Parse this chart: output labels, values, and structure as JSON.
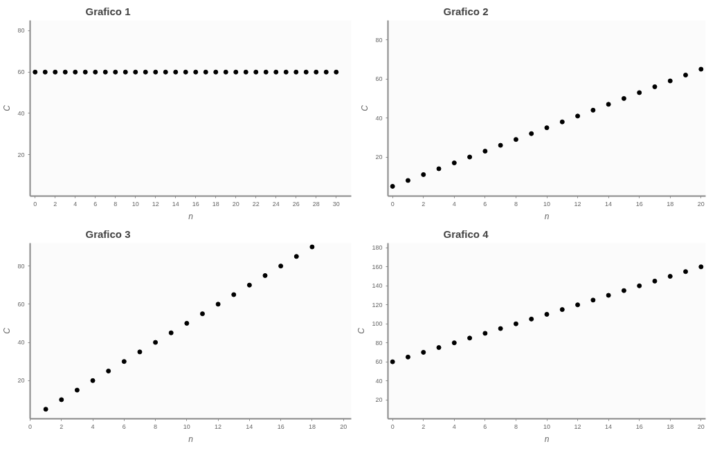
{
  "chart_data": [
    {
      "type": "scatter",
      "title": "Grafico 1",
      "xlabel": "n",
      "ylabel": "C",
      "marker": "circle",
      "grid": false,
      "xlim": [
        -0.5,
        31.5
      ],
      "ylim": [
        0,
        85
      ],
      "xticks": [
        0,
        2,
        4,
        6,
        8,
        10,
        12,
        14,
        16,
        18,
        20,
        22,
        24,
        26,
        28,
        30
      ],
      "yticks": [
        20,
        40,
        60,
        80
      ],
      "x": [
        0,
        1,
        2,
        3,
        4,
        5,
        6,
        7,
        8,
        9,
        10,
        11,
        12,
        13,
        14,
        15,
        16,
        17,
        18,
        19,
        20,
        21,
        22,
        23,
        24,
        25,
        26,
        27,
        28,
        29,
        30
      ],
      "series": [
        {
          "color": "#000000",
          "values": [
            60,
            60,
            60,
            60,
            60,
            60,
            60,
            60,
            60,
            60,
            60,
            60,
            60,
            60,
            60,
            60,
            60,
            60,
            60,
            60,
            60,
            60,
            60,
            60,
            60,
            60,
            60,
            60,
            60,
            60,
            60
          ]
        }
      ]
    },
    {
      "type": "scatter",
      "title": "Grafico 2",
      "xlabel": "n",
      "ylabel": "C",
      "marker": "circle",
      "grid": false,
      "xlim": [
        -0.3,
        20.3
      ],
      "ylim": [
        0,
        90
      ],
      "xticks": [
        0,
        2,
        4,
        6,
        8,
        10,
        12,
        14,
        16,
        18,
        20
      ],
      "yticks": [
        20,
        40,
        60,
        80
      ],
      "x": [
        0,
        1,
        2,
        3,
        4,
        5,
        6,
        7,
        8,
        9,
        10,
        11,
        12,
        13,
        14,
        15,
        16,
        17,
        18,
        19,
        20
      ],
      "series": [
        {
          "color": "#000000",
          "values": [
            5,
            8,
            11,
            14,
            17,
            20,
            23,
            26,
            29,
            32,
            35,
            38,
            41,
            44,
            47,
            50,
            53,
            56,
            59,
            62,
            65
          ]
        }
      ]
    },
    {
      "type": "scatter",
      "title": "Grafico 3",
      "xlabel": "n",
      "ylabel": "C",
      "marker": "circle",
      "grid": false,
      "xlim": [
        0,
        20.5
      ],
      "ylim": [
        0,
        92
      ],
      "xticks": [
        0,
        2,
        4,
        6,
        8,
        10,
        12,
        14,
        16,
        18,
        20
      ],
      "yticks": [
        20,
        40,
        60,
        80
      ],
      "x": [
        1,
        2,
        3,
        4,
        5,
        6,
        7,
        8,
        9,
        10,
        11,
        12,
        13,
        14,
        15,
        16,
        17,
        18
      ],
      "series": [
        {
          "color": "#000000",
          "values": [
            5,
            10,
            15,
            20,
            25,
            30,
            35,
            40,
            45,
            50,
            55,
            60,
            65,
            70,
            75,
            80,
            85,
            90
          ]
        }
      ]
    },
    {
      "type": "scatter",
      "title": "Grafico 4",
      "xlabel": "n",
      "ylabel": "C",
      "marker": "circle",
      "grid": false,
      "xlim": [
        -0.3,
        20.3
      ],
      "ylim": [
        0,
        185
      ],
      "xticks": [
        0,
        2,
        4,
        6,
        8,
        10,
        12,
        14,
        16,
        18,
        20
      ],
      "yticks": [
        20,
        40,
        60,
        80,
        100,
        120,
        140,
        160,
        180
      ],
      "x": [
        0,
        1,
        2,
        3,
        4,
        5,
        6,
        7,
        8,
        9,
        10,
        11,
        12,
        13,
        14,
        15,
        16,
        17,
        18,
        19,
        20
      ],
      "series": [
        {
          "color": "#000000",
          "values": [
            60,
            65,
            70,
            75,
            80,
            85,
            90,
            95,
            100,
            105,
            110,
            115,
            120,
            125,
            130,
            135,
            140,
            145,
            150,
            155,
            160
          ]
        }
      ]
    }
  ]
}
